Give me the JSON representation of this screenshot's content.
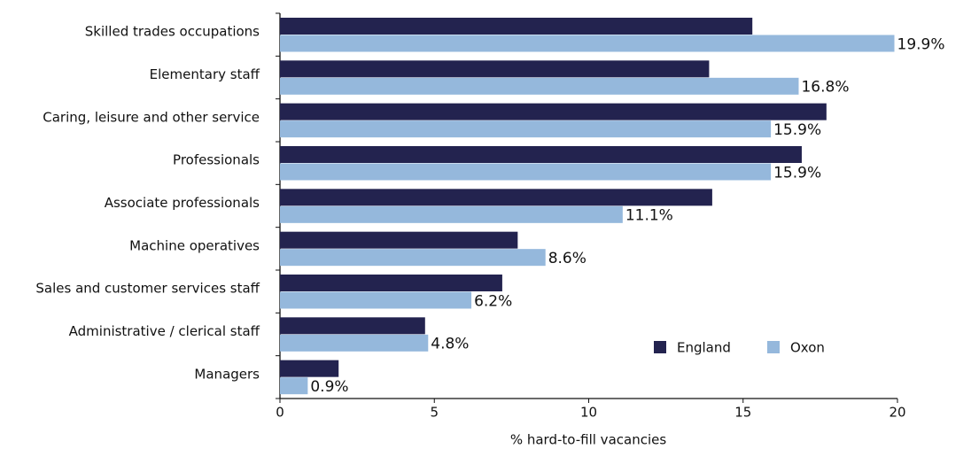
{
  "chart_data": {
    "type": "hbar",
    "categories": [
      "Skilled trades occupations",
      "Elementary staff",
      "Caring, leisure and other service",
      "Professionals",
      "Associate professionals",
      "Machine operatives",
      "Sales and customer services staff",
      "Administrative / clerical staff",
      "Managers"
    ],
    "series": [
      {
        "name": "England",
        "color": "#23234f",
        "values": [
          15.3,
          13.9,
          17.7,
          16.9,
          14.0,
          7.7,
          7.2,
          4.7,
          1.9
        ]
      },
      {
        "name": "Oxon",
        "color": "#95b8dc",
        "values": [
          19.9,
          16.8,
          15.9,
          15.9,
          11.1,
          8.6,
          6.2,
          4.8,
          0.9
        ],
        "value_labels": [
          "19.9%",
          "16.8%",
          "15.9%",
          "15.9%",
          "11.1%",
          "8.6%",
          "6.2%",
          "4.8%",
          "0.9%"
        ]
      }
    ],
    "xlabel": "% hard-to-fill vacancies",
    "xlim": [
      0,
      20
    ],
    "xticks": [
      0,
      5,
      10,
      15,
      20
    ]
  }
}
